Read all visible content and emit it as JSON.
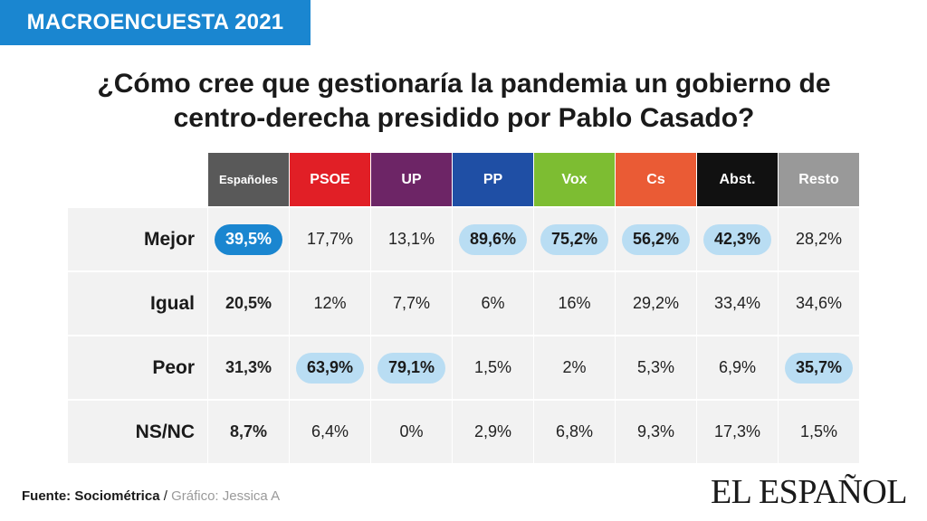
{
  "header_tag": "MACROENCUESTA 2021",
  "title_lines": [
    "¿Cómo cree que gestionaría la pandemia un  gobierno de",
    "centro-derecha presidido por Pablo  Casado?"
  ],
  "chart_data": {
    "type": "table",
    "columns": [
      {
        "name": "Españoles",
        "color": "#595959"
      },
      {
        "name": "PSOE",
        "color": "#e11f26"
      },
      {
        "name": "UP",
        "color": "#6d2566"
      },
      {
        "name": "PP",
        "color": "#1f4fa5"
      },
      {
        "name": "Vox",
        "color": "#7dbd32"
      },
      {
        "name": "Cs",
        "color": "#ea5b35"
      },
      {
        "name": "Abst.",
        "color": "#111111"
      },
      {
        "name": "Resto",
        "color": "#999999"
      }
    ],
    "rows": [
      {
        "label": "Mejor",
        "values": [
          "39,5%",
          "17,7%",
          "13,1%",
          "89,6%",
          "75,2%",
          "56,2%",
          "42,3%",
          "28,2%"
        ],
        "highlight": [
          true,
          false,
          false,
          true,
          true,
          true,
          true,
          false
        ]
      },
      {
        "label": "Igual",
        "values": [
          "20,5%",
          "12%",
          "7,7%",
          "6%",
          "16%",
          "29,2%",
          "33,4%",
          "34,6%"
        ],
        "highlight": [
          false,
          false,
          false,
          false,
          false,
          false,
          false,
          false
        ]
      },
      {
        "label": "Peor",
        "values": [
          "31,3%",
          "63,9%",
          "79,1%",
          "1,5%",
          "2%",
          "5,3%",
          "6,9%",
          "35,7%"
        ],
        "highlight": [
          false,
          true,
          true,
          false,
          false,
          false,
          false,
          true
        ]
      },
      {
        "label": "NS/NC",
        "values": [
          "8,7%",
          "6,4%",
          "0%",
          "2,9%",
          "6,8%",
          "9,3%",
          "17,3%",
          "1,5%"
        ],
        "highlight": [
          false,
          false,
          false,
          false,
          false,
          false,
          false,
          false
        ]
      }
    ],
    "highlight_color": "#b9ddf3",
    "highlight_color_total": "#1a86d0"
  },
  "footer": {
    "source_label": "Fuente: Sociométrica",
    "separator": " / ",
    "credit": "Gráfico: Jessica A"
  },
  "logo_text": "EL ESPAÑOL"
}
